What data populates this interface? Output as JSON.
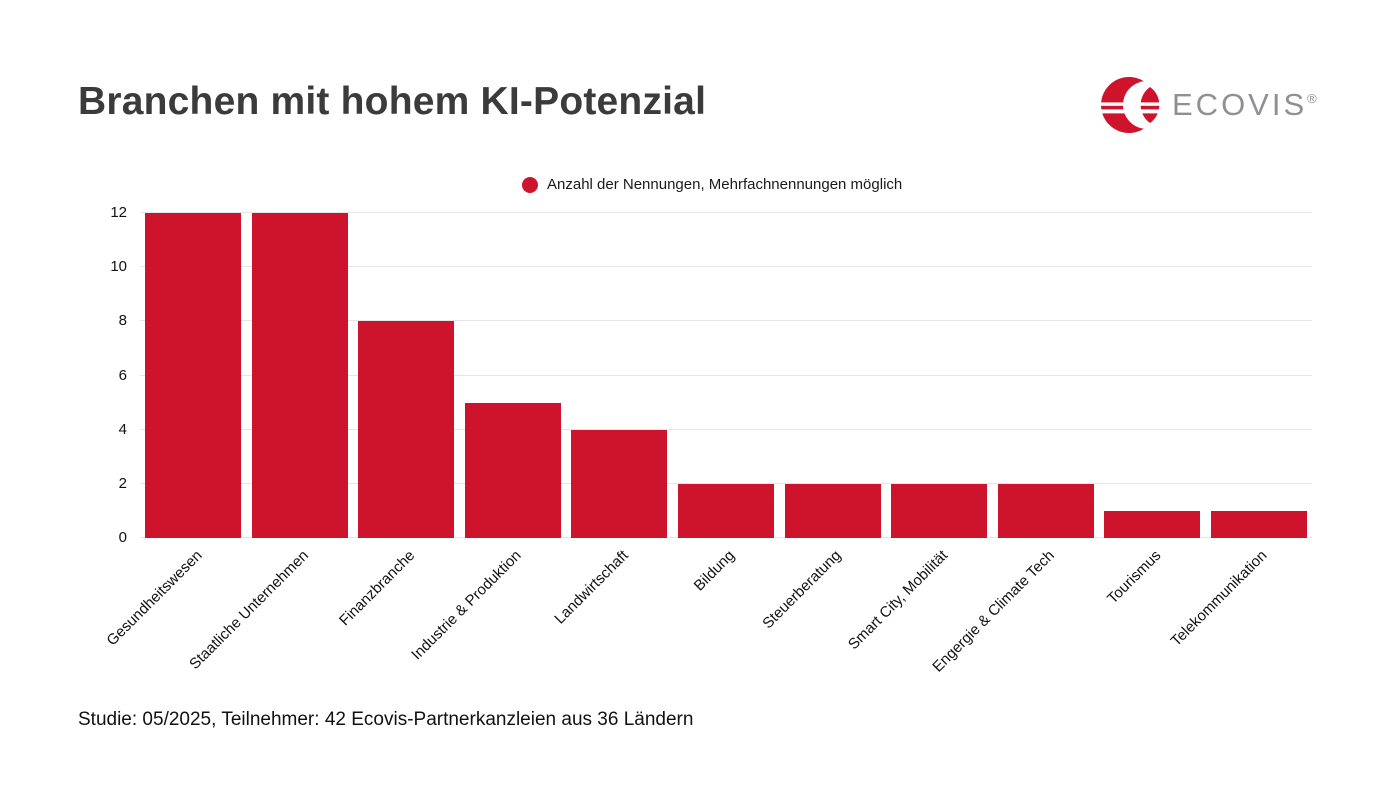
{
  "page": {
    "title": "Branchen mit hohem KI-Potenzial",
    "footer": "Studie: 05/2025, Teilnehmer: 42 Ecovis-Partnerkanzleien aus 36 Ländern"
  },
  "logo": {
    "brand": "ECOVIS",
    "registered": "®",
    "red": "#ce132d",
    "gray": "#8e9093"
  },
  "legend": {
    "label": "Anzahl der Nennungen, Mehrfachnennungen möglich",
    "marker_color": "#ce132d"
  },
  "chart_data": {
    "type": "bar",
    "title": "Branchen mit hohem KI-Potenzial",
    "categories": [
      "Gesundheitswesen",
      "Staatliche Unternehmen",
      "Finanzbranche",
      "Industrie & Produktion",
      "Landwirtschaft",
      "Bildung",
      "Steuerberatung",
      "Smart City, Mobilität",
      "Engergie & Climate Tech",
      "Tourismus",
      "Telekommunikation"
    ],
    "values": [
      12,
      12,
      8,
      5,
      4,
      2,
      2,
      2,
      2,
      1,
      1
    ],
    "series_label": "Anzahl der Nennungen, Mehrfachnennungen möglich",
    "xlabel": "",
    "ylabel": "",
    "ylim": [
      0,
      12
    ],
    "yticks": [
      0,
      2,
      4,
      6,
      8,
      10,
      12
    ],
    "bar_color": "#ce132d",
    "grid": true,
    "gridline_color": "#e6e6e6",
    "legend_position": "top-center",
    "x_tick_rotation_deg": -45
  }
}
